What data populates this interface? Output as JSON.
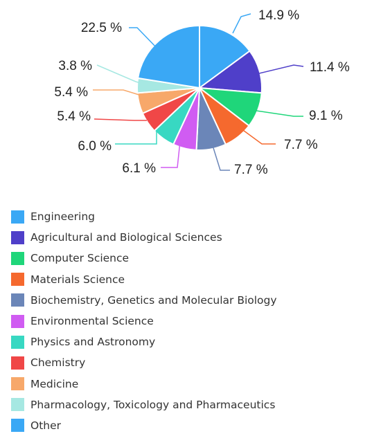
{
  "chart_data": {
    "type": "pie",
    "title": "",
    "legend_position": "bottom",
    "series": [
      {
        "label": "Engineering",
        "value": 14.9,
        "value_text": "14.9 %",
        "color": "#3aa8f5"
      },
      {
        "label": "Agricultural and Biological Sciences",
        "value": 11.4,
        "value_text": "11.4 %",
        "color": "#4f3fc9"
      },
      {
        "label": "Computer Science",
        "value": 9.1,
        "value_text": "9.1 %",
        "color": "#1fd67a"
      },
      {
        "label": "Materials Science",
        "value": 7.7,
        "value_text": "7.7 %",
        "color": "#f5692e"
      },
      {
        "label": "Biochemistry, Genetics and Molecular Biology",
        "value": 7.7,
        "value_text": "7.7 %",
        "color": "#6b86b8"
      },
      {
        "label": "Environmental Science",
        "value": 6.1,
        "value_text": "6.1 %",
        "color": "#d05cf2"
      },
      {
        "label": "Physics and Astronomy",
        "value": 6.0,
        "value_text": "6.0 %",
        "color": "#38d8c2"
      },
      {
        "label": "Chemistry",
        "value": 5.4,
        "value_text": "5.4 %",
        "color": "#f04747"
      },
      {
        "label": "Medicine",
        "value": 5.4,
        "value_text": "5.4 %",
        "color": "#f7a86a"
      },
      {
        "label": "Pharmacology, Toxicology and Pharmaceutics",
        "value": 3.8,
        "value_text": "3.8 %",
        "color": "#a6e8e2"
      },
      {
        "label": "Other",
        "value": 22.5,
        "value_text": "22.5 %",
        "color": "#3aa8f5"
      }
    ]
  }
}
